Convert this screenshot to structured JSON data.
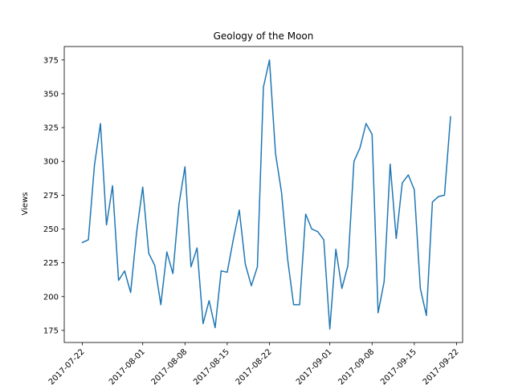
{
  "chart_data": {
    "type": "line",
    "title": "Geology of the Moon",
    "xlabel": "",
    "ylabel": "Views",
    "grid": false,
    "legend": "none",
    "line_color": "#1f77b4",
    "x_start": "2017-07-22",
    "x": [
      "2017-07-22",
      "2017-07-23",
      "2017-07-24",
      "2017-07-25",
      "2017-07-26",
      "2017-07-27",
      "2017-07-28",
      "2017-07-29",
      "2017-07-30",
      "2017-07-31",
      "2017-08-01",
      "2017-08-02",
      "2017-08-03",
      "2017-08-04",
      "2017-08-05",
      "2017-08-06",
      "2017-08-07",
      "2017-08-08",
      "2017-08-09",
      "2017-08-10",
      "2017-08-11",
      "2017-08-12",
      "2017-08-13",
      "2017-08-14",
      "2017-08-15",
      "2017-08-16",
      "2017-08-17",
      "2017-08-18",
      "2017-08-19",
      "2017-08-20",
      "2017-08-21",
      "2017-08-22",
      "2017-08-23",
      "2017-08-24",
      "2017-08-25",
      "2017-08-26",
      "2017-08-27",
      "2017-08-28",
      "2017-08-29",
      "2017-08-30",
      "2017-08-31",
      "2017-09-01",
      "2017-09-02",
      "2017-09-03",
      "2017-09-04",
      "2017-09-05",
      "2017-09-06",
      "2017-09-07",
      "2017-09-08",
      "2017-09-09",
      "2017-09-10",
      "2017-09-11",
      "2017-09-12",
      "2017-09-13",
      "2017-09-14",
      "2017-09-15",
      "2017-09-16",
      "2017-09-17",
      "2017-09-18",
      "2017-09-19",
      "2017-09-20",
      "2017-09-21"
    ],
    "values": [
      240,
      242,
      297,
      328,
      253,
      282,
      212,
      219,
      203,
      248,
      281,
      232,
      223,
      194,
      233,
      217,
      268,
      296,
      222,
      236,
      180,
      197,
      177,
      219,
      218,
      242,
      264,
      224,
      208,
      222,
      355,
      375,
      306,
      277,
      228,
      194,
      194,
      261,
      250,
      248,
      242,
      176,
      235,
      206,
      223,
      300,
      310,
      328,
      320,
      188,
      211,
      298,
      243,
      284,
      290,
      279,
      206,
      186,
      270,
      274,
      275,
      333
    ],
    "x_ticks": [
      "2017-07-22",
      "2017-08-01",
      "2017-08-08",
      "2017-08-15",
      "2017-08-22",
      "2017-09-01",
      "2017-09-08",
      "2017-09-15",
      "2017-09-22"
    ],
    "y_ticks": [
      175,
      200,
      225,
      250,
      275,
      300,
      325,
      350,
      375
    ],
    "xlim": [
      "2017-07-19",
      "2017-09-23"
    ],
    "ylim": [
      166.05,
      384.95
    ]
  }
}
